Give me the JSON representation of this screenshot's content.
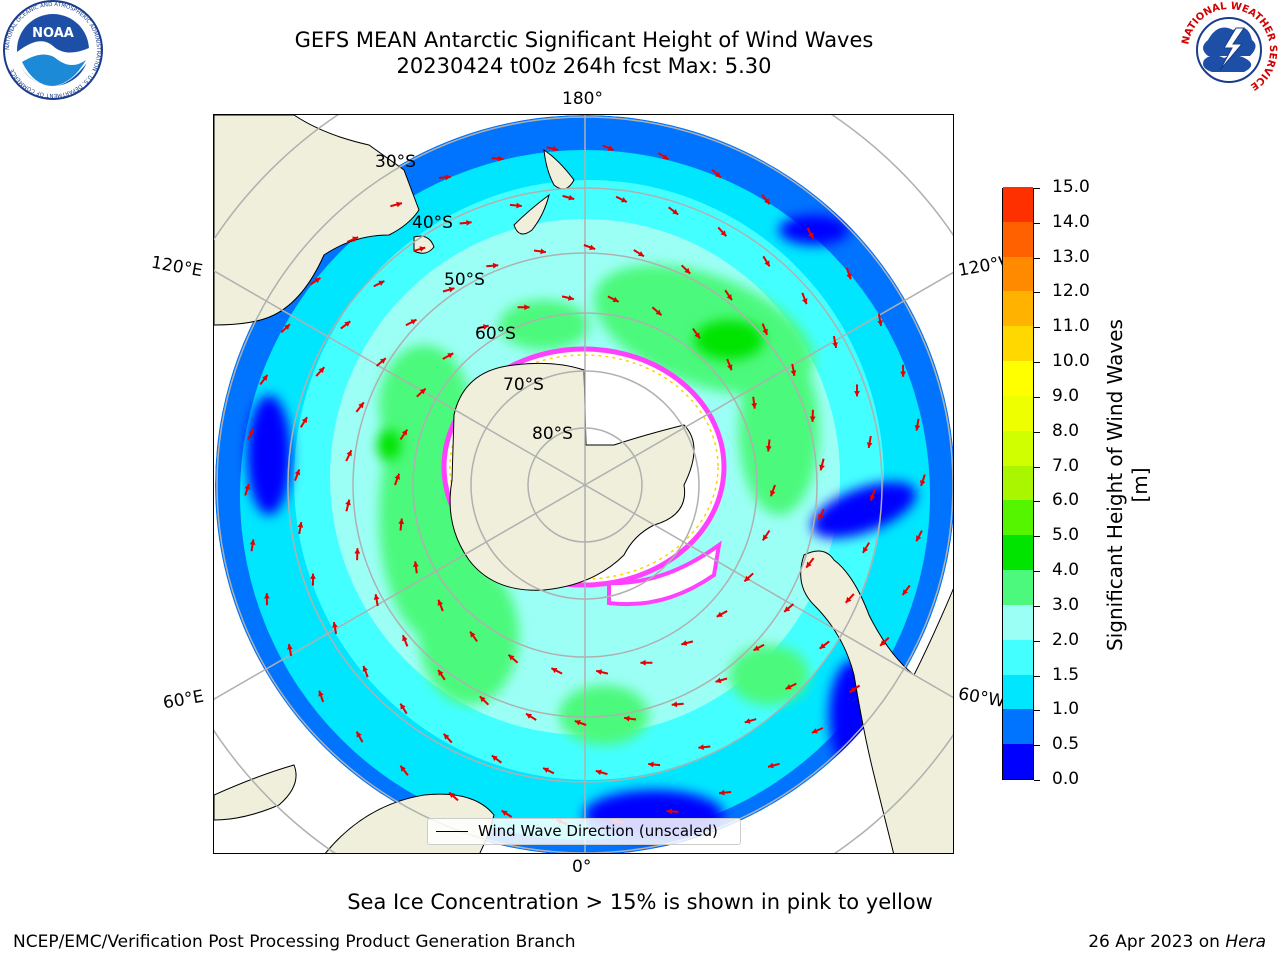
{
  "header": {
    "title_line1": "GEFS MEAN Antarctic Significant Height of Wind Waves",
    "title_line2": "20230424 t00z 264h fcst   Max: 5.30"
  },
  "logos": {
    "noaa_text": "NOAA",
    "noaa_ring_text": "NATIONAL OCEANIC AND ATMOSPHERIC ADMINISTRATION · U.S. DEPARTMENT OF COMMERCE",
    "nws_ring_text": "NATIONAL WEATHER SERVICE"
  },
  "map": {
    "projection": "south-polar-stereographic",
    "longitude_labels": {
      "top": "180°",
      "bottom": "0°",
      "upper_left": "120°E",
      "upper_right": "120°W",
      "lower_left": "60°E",
      "lower_right": "60°W"
    },
    "latitude_labels": [
      "30°S",
      "40°S",
      "50°S",
      "60°S",
      "70°S",
      "80°S"
    ],
    "colors": {
      "land": "#efefdc",
      "coastline": "#000000",
      "gridlines": "#b0b0b0",
      "arrows": "#e60000",
      "sea_ice_edge_pink": "#ff40ff",
      "sea_ice_edge_yellow": "#ffd200"
    },
    "legend": {
      "label": "Wind Wave Direction (unscaled)"
    }
  },
  "colorbar": {
    "label": "Significant Height of Wind Waves [m]",
    "tick_labels": [
      "0.0",
      "0.5",
      "1.0",
      "1.5",
      "2.0",
      "3.0",
      "4.0",
      "5.0",
      "6.0",
      "7.0",
      "8.0",
      "9.0",
      "10.0",
      "11.0",
      "12.0",
      "13.0",
      "14.0",
      "15.0"
    ],
    "colors": [
      "#0000ff",
      "#0074ff",
      "#00e6ff",
      "#44ffff",
      "#9cfff6",
      "#4cf97c",
      "#00e400",
      "#55f500",
      "#aaf500",
      "#d0ff00",
      "#eeff00",
      "#ffff00",
      "#ffd800",
      "#ffb200",
      "#ff8a00",
      "#ff6000",
      "#ff3000"
    ]
  },
  "footer": {
    "sea_ice_note": "Sea Ice Concentration > 15% is shown in pink to yellow",
    "credit_left": "NCEP/EMC/Verification Post Processing Product Generation Branch",
    "credit_date": "26 Apr 2023 on",
    "credit_machine": "Hera"
  }
}
